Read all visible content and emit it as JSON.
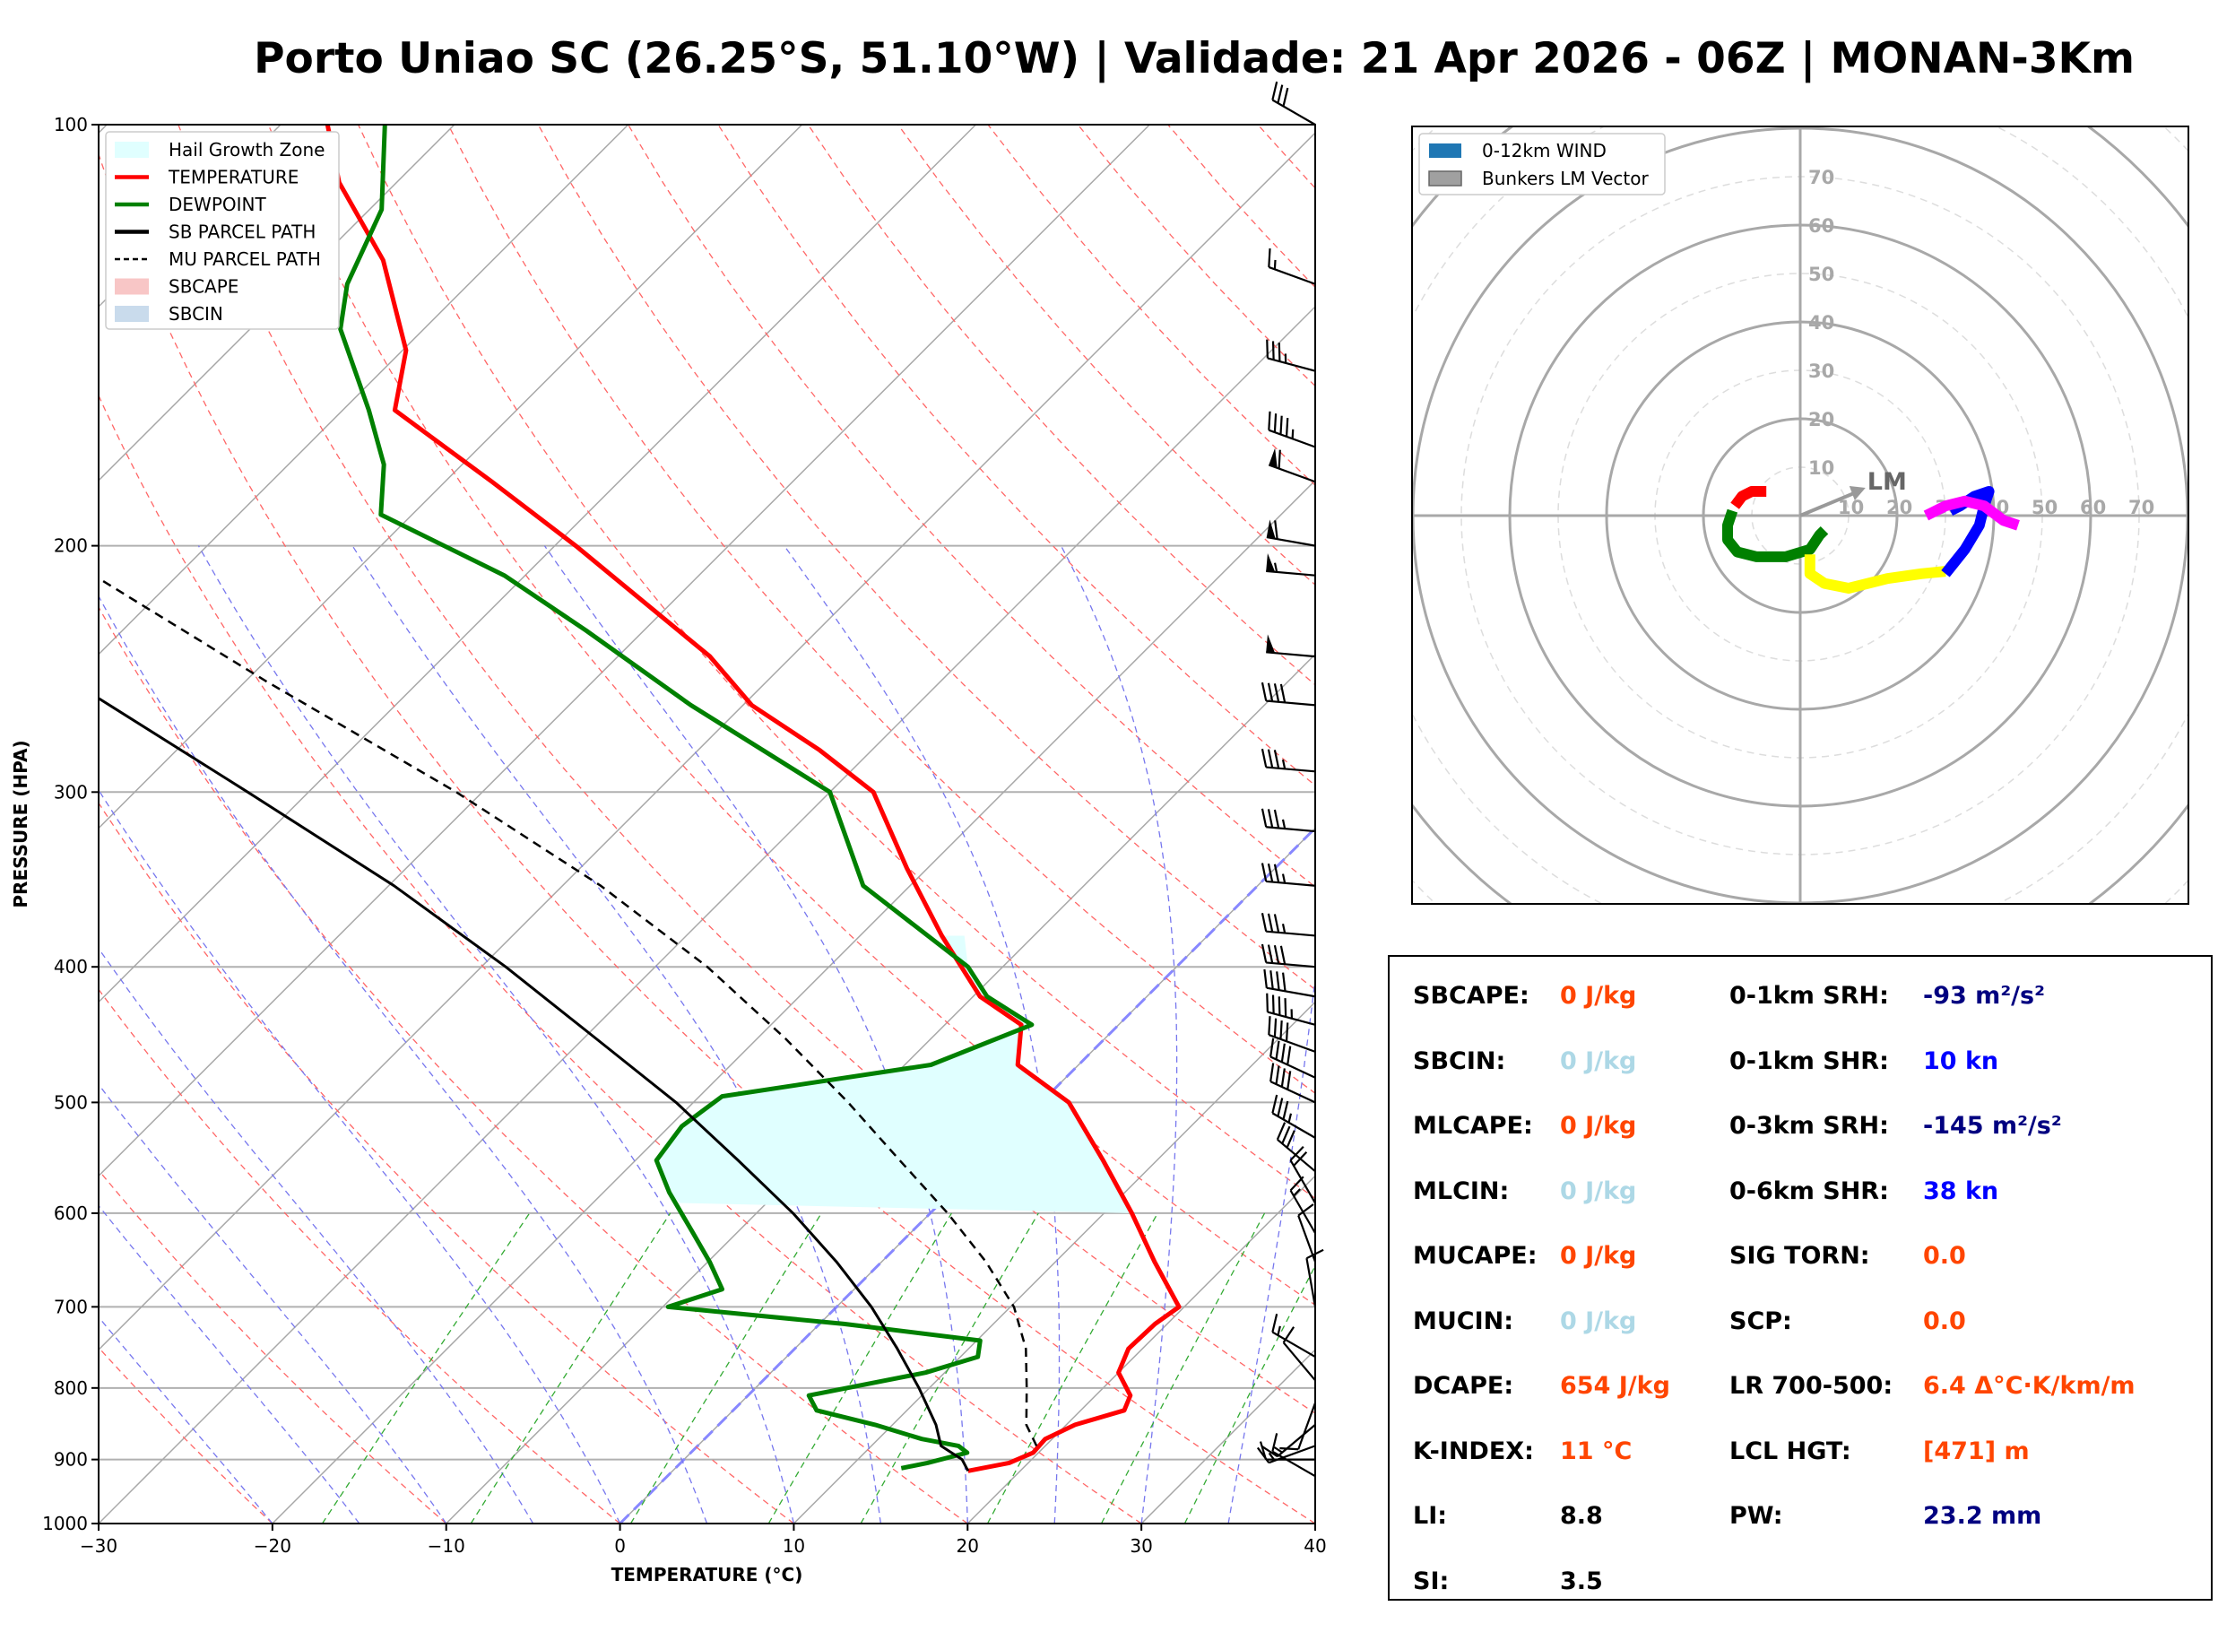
{
  "title": "Porto Uniao SC (26.25°S, 51.10°W) | Validade: 21 Apr 2026 - 06Z | MONAN-3Km",
  "chart_data": [
    {
      "type": "line",
      "subtype": "skew-t log-p",
      "xlabel": "TEMPERATURE (°C)",
      "ylabel": "PRESSURE (HPA)",
      "xlim": [
        -30,
        40
      ],
      "ylim": [
        1000,
        100
      ],
      "y_scale": "log",
      "x_ticks": [
        "−30",
        "−20",
        "−10",
        "0",
        "10",
        "20",
        "30",
        "40"
      ],
      "y_ticks": [
        100,
        200,
        300,
        400,
        500,
        600,
        700,
        800,
        900,
        1000
      ],
      "legend_position": "top-left",
      "legend": [
        {
          "label": "Hail Growth Zone",
          "color": "#e0ffff",
          "style": "patch"
        },
        {
          "label": "TEMPERATURE",
          "color": "#ff0000",
          "style": "solid"
        },
        {
          "label": "DEWPOINT",
          "color": "#008000",
          "style": "solid"
        },
        {
          "label": "SB PARCEL PATH",
          "color": "#000000",
          "style": "solid"
        },
        {
          "label": "MU PARCEL PATH",
          "color": "#000000",
          "style": "dashed"
        },
        {
          "label": "SBCAPE",
          "color": "#f8c6c6",
          "style": "patch"
        },
        {
          "label": "SBCIN",
          "color": "#c9dbec",
          "style": "patch"
        }
      ],
      "series": [
        {
          "name": "TEMPERATURE",
          "color": "#ff0000",
          "points": [
            [
              917,
              17.0
            ],
            [
              905,
              18.9
            ],
            [
              890,
              19.7
            ],
            [
              870,
              19.6
            ],
            [
              850,
              20.5
            ],
            [
              830,
              22.5
            ],
            [
              810,
              22.0
            ],
            [
              780,
              20.0
            ],
            [
              750,
              19.2
            ],
            [
              720,
              19.3
            ],
            [
              700,
              19.7
            ],
            [
              650,
              15.7
            ],
            [
              600,
              11.6
            ],
            [
              550,
              6.9
            ],
            [
              500,
              1.6
            ],
            [
              470,
              -3.5
            ],
            [
              440,
              -5.6
            ],
            [
              420,
              -9.6
            ],
            [
              380,
              -15.3
            ],
            [
              340,
              -21.2
            ],
            [
              300,
              -27.5
            ],
            [
              280,
              -33.0
            ],
            [
              260,
              -39.5
            ],
            [
              240,
              -44.7
            ],
            [
              200,
              -58.8
            ],
            [
              180,
              -67.3
            ],
            [
              160,
              -77.0
            ],
            [
              145,
              -79.8
            ],
            [
              125,
              -86.3
            ],
            [
              110,
              -93.3
            ],
            [
              100,
              -97.3
            ]
          ]
        },
        {
          "name": "DEWPOINT",
          "color": "#008000",
          "points": [
            [
              913,
              13.0
            ],
            [
              905,
              14.2
            ],
            [
              890,
              15.9
            ],
            [
              880,
              15.0
            ],
            [
              870,
              12.5
            ],
            [
              850,
              9.0
            ],
            [
              830,
              4.8
            ],
            [
              810,
              3.5
            ],
            [
              780,
              8.9
            ],
            [
              760,
              11.0
            ],
            [
              740,
              10.2
            ],
            [
              720,
              1.4
            ],
            [
              700,
              -9.7
            ],
            [
              680,
              -7.6
            ],
            [
              650,
              -9.9
            ],
            [
              620,
              -12.5
            ],
            [
              580,
              -16.2
            ],
            [
              550,
              -18.8
            ],
            [
              520,
              -19.3
            ],
            [
              495,
              -18.7
            ],
            [
              470,
              -8.5
            ],
            [
              440,
              -5.0
            ],
            [
              420,
              -9.2
            ],
            [
              400,
              -12.0
            ],
            [
              350,
              -22.7
            ],
            [
              300,
              -30.0
            ],
            [
              260,
              -43.0
            ],
            [
              230,
              -53.3
            ],
            [
              210,
              -61.2
            ],
            [
              190,
              -71.8
            ],
            [
              175,
              -74.5
            ],
            [
              160,
              -78.5
            ],
            [
              140,
              -84.8
            ],
            [
              130,
              -87.0
            ],
            [
              115,
              -89.3
            ],
            [
              100,
              -94.0
            ]
          ]
        },
        {
          "name": "SB PARCEL PATH",
          "color": "#000000",
          "points": [
            [
              917,
              17.0
            ],
            [
              900,
              16.0
            ],
            [
              880,
              14.0
            ],
            [
              850,
              12.5
            ],
            [
              800,
              9.4
            ],
            [
              750,
              5.9
            ],
            [
              700,
              2.0
            ],
            [
              650,
              -2.6
            ],
            [
              600,
              -7.9
            ],
            [
              550,
              -14.1
            ],
            [
              500,
              -21.0
            ],
            [
              450,
              -29.3
            ],
            [
              400,
              -38.6
            ],
            [
              350,
              -49.7
            ],
            [
              300,
              -63.5
            ],
            [
              250,
              -80.0
            ],
            [
              200,
              -99.8
            ],
            [
              150,
              -125.0
            ],
            [
              120,
              -143.0
            ],
            [
              100,
              -153.0
            ]
          ]
        },
        {
          "name": "MU PARCEL PATH",
          "color": "#000000",
          "points": [
            [
              880,
              19.5
            ],
            [
              850,
              17.7
            ],
            [
              800,
              15.6
            ],
            [
              750,
              13.3
            ],
            [
              700,
              10.2
            ],
            [
              650,
              6.0
            ],
            [
              600,
              1.0
            ],
            [
              550,
              -4.8
            ],
            [
              500,
              -11.1
            ],
            [
              450,
              -18.4
            ],
            [
              400,
              -27.0
            ],
            [
              350,
              -37.8
            ],
            [
              300,
              -51.5
            ],
            [
              250,
              -68.8
            ],
            [
              200,
              -89.3
            ],
            [
              150,
              -113.3
            ],
            [
              120,
              -130.0
            ]
          ]
        }
      ]
    },
    {
      "type": "scatter",
      "subtype": "hodograph",
      "legend_position": "top-left",
      "legend": [
        {
          "label": "0-12km WIND",
          "color": "#1f77b4"
        },
        {
          "label": "Bunkers LM Vector",
          "color": "#a0a0a0"
        }
      ],
      "ring_labels": [
        "10",
        "20",
        "30",
        "40",
        "50",
        "60",
        "70"
      ],
      "lm_label": "LM",
      "lm_vector": [
        12,
        5
      ],
      "segments": [
        {
          "color": "#ff0000",
          "points": [
            [
              -7,
              5
            ],
            [
              -10,
              5
            ],
            [
              -12,
              4
            ],
            [
              -13.5,
              2
            ]
          ]
        },
        {
          "color": "#008000",
          "points": [
            [
              -14,
              1
            ],
            [
              -15,
              -2
            ],
            [
              -15,
              -5
            ],
            [
              -13,
              -7.5
            ],
            [
              -9,
              -8.5
            ],
            [
              -3,
              -8.5
            ],
            [
              2,
              -7
            ],
            [
              4,
              -4
            ],
            [
              5,
              -3
            ]
          ]
        },
        {
          "color": "#ffff00",
          "points": [
            [
              2,
              -8
            ],
            [
              2,
              -12
            ],
            [
              5,
              -14
            ],
            [
              10,
              -15
            ],
            [
              18,
              -13
            ],
            [
              25,
              -12
            ],
            [
              30,
              -11.5
            ]
          ]
        },
        {
          "color": "#0000ff",
          "points": [
            [
              30,
              -12
            ],
            [
              34,
              -7
            ],
            [
              37,
              -2
            ],
            [
              38,
              2
            ],
            [
              39,
              5
            ],
            [
              36,
              4
            ],
            [
              33,
              2
            ],
            [
              31,
              1
            ]
          ]
        },
        {
          "color": "#ff00ff",
          "points": [
            [
              26,
              0
            ],
            [
              30,
              2
            ],
            [
              34,
              3
            ],
            [
              38,
              2
            ],
            [
              42,
              -1
            ],
            [
              45,
              -2
            ]
          ]
        }
      ]
    }
  ],
  "wind_barbs": [
    {
      "p": 100,
      "spd": 30,
      "dir": 300
    },
    {
      "p": 130,
      "spd": 15,
      "dir": 290
    },
    {
      "p": 150,
      "spd": 35,
      "dir": 285
    },
    {
      "p": 170,
      "spd": 45,
      "dir": 290
    },
    {
      "p": 180,
      "spd": 60,
      "dir": 290
    },
    {
      "p": 200,
      "spd": 60,
      "dir": 280
    },
    {
      "p": 210,
      "spd": 55,
      "dir": 275
    },
    {
      "p": 240,
      "spd": 50,
      "dir": 275
    },
    {
      "p": 260,
      "spd": 40,
      "dir": 275
    },
    {
      "p": 290,
      "spd": 35,
      "dir": 275
    },
    {
      "p": 320,
      "spd": 35,
      "dir": 275
    },
    {
      "p": 350,
      "spd": 35,
      "dir": 275
    },
    {
      "p": 380,
      "spd": 35,
      "dir": 275
    },
    {
      "p": 400,
      "spd": 40,
      "dir": 275
    },
    {
      "p": 420,
      "spd": 40,
      "dir": 280
    },
    {
      "p": 440,
      "spd": 45,
      "dir": 285
    },
    {
      "p": 460,
      "spd": 40,
      "dir": 290
    },
    {
      "p": 480,
      "spd": 40,
      "dir": 295
    },
    {
      "p": 500,
      "spd": 40,
      "dir": 295
    },
    {
      "p": 530,
      "spd": 35,
      "dir": 300
    },
    {
      "p": 560,
      "spd": 30,
      "dir": 310
    },
    {
      "p": 590,
      "spd": 20,
      "dir": 330
    },
    {
      "p": 620,
      "spd": 15,
      "dir": 330
    },
    {
      "p": 650,
      "spd": 10,
      "dir": 340
    },
    {
      "p": 700,
      "spd": 10,
      "dir": 350
    },
    {
      "p": 760,
      "spd": 15,
      "dir": 300
    },
    {
      "p": 790,
      "spd": 10,
      "dir": 320
    },
    {
      "p": 820,
      "spd": 10,
      "dir": 200
    },
    {
      "p": 850,
      "spd": 15,
      "dir": 230
    },
    {
      "p": 880,
      "spd": 15,
      "dir": 250
    },
    {
      "p": 900,
      "spd": 10,
      "dir": 270
    },
    {
      "p": 925,
      "spd": 10,
      "dir": 300
    }
  ],
  "stats": [
    {
      "label": "SBCAPE:",
      "value": "0 J/kg",
      "color": "#ff4500"
    },
    {
      "label": "SBCIN:",
      "value": "0 J/kg",
      "color": "#add8e6"
    },
    {
      "label": "MLCAPE:",
      "value": "0 J/kg",
      "color": "#ff4500"
    },
    {
      "label": "MLCIN:",
      "value": "0 J/kg",
      "color": "#add8e6"
    },
    {
      "label": "MUCAPE:",
      "value": "0 J/kg",
      "color": "#ff4500"
    },
    {
      "label": "MUCIN:",
      "value": "0 J/kg",
      "color": "#add8e6"
    },
    {
      "label": "DCAPE:",
      "value": "654 J/kg",
      "color": "#ff4500"
    },
    {
      "label": "K-INDEX:",
      "value": "11 °C",
      "color": "#ff4500"
    },
    {
      "label": "LI:",
      "value": "8.8",
      "color": "#000000"
    },
    {
      "label": "SI:",
      "value": "3.5",
      "color": "#000000"
    },
    {
      "label": "0-1km SRH:",
      "value": "-93 m²/s²",
      "color": "#000080"
    },
    {
      "label": "0-1km SHR:",
      "value": "10 kn",
      "color": "#0000ff"
    },
    {
      "label": "0-3km SRH:",
      "value": "-145 m²/s²",
      "color": "#000080"
    },
    {
      "label": "0-6km SHR:",
      "value": "38 kn",
      "color": "#0000ff"
    },
    {
      "label": "SIG TORN:",
      "value": "0.0",
      "color": "#ff4500"
    },
    {
      "label": "SCP:",
      "value": "0.0",
      "color": "#ff4500"
    },
    {
      "label": "LR 700-500:",
      "value": "6.4 Δ°C·K/km/m",
      "color": "#ff4500"
    },
    {
      "label": "LCL HGT:",
      "value": "[471] m",
      "color": "#ff4500"
    },
    {
      "label": "PW:",
      "value": "23.2 mm",
      "color": "#000080"
    }
  ]
}
